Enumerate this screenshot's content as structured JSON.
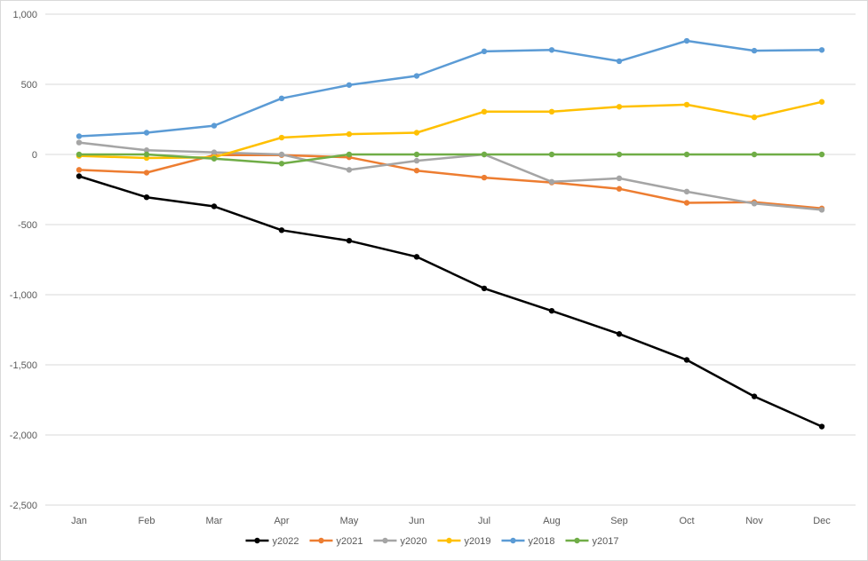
{
  "chart_data": {
    "type": "line",
    "title": "",
    "xlabel": "",
    "ylabel": "",
    "categories": [
      "Jan",
      "Feb",
      "Mar",
      "Apr",
      "May",
      "Jun",
      "Jul",
      "Aug",
      "Sep",
      "Oct",
      "Nov",
      "Dec"
    ],
    "ylim": [
      -2500,
      1000
    ],
    "yticks": [
      1000,
      500,
      0,
      -500,
      -1000,
      -1500,
      -2000,
      -2500
    ],
    "ytick_labels": [
      "1,000",
      "500",
      "0",
      "-500",
      "-1,000",
      "-1,500",
      "-2,000",
      "-2,500"
    ],
    "grid": true,
    "legend_position": "bottom",
    "series": [
      {
        "name": "y2022",
        "color": "#000000",
        "values": [
          -155,
          -305,
          -370,
          -540,
          -615,
          -730,
          -955,
          -1115,
          -1280,
          -1465,
          -1725,
          -1940
        ]
      },
      {
        "name": "y2021",
        "color": "#ed7d31",
        "values": [
          -110,
          -130,
          -5,
          -5,
          -20,
          -115,
          -165,
          -200,
          -245,
          -345,
          -340,
          -385
        ]
      },
      {
        "name": "y2020",
        "color": "#a5a5a5",
        "values": [
          85,
          30,
          15,
          0,
          -110,
          -45,
          0,
          -195,
          -170,
          -265,
          -350,
          -395
        ]
      },
      {
        "name": "y2019",
        "color": "#ffc000",
        "values": [
          -10,
          -25,
          -20,
          120,
          145,
          155,
          305,
          305,
          340,
          355,
          265,
          375
        ]
      },
      {
        "name": "y2018",
        "color": "#5b9bd5",
        "values": [
          130,
          155,
          205,
          400,
          495,
          560,
          735,
          745,
          665,
          810,
          740,
          745
        ]
      },
      {
        "name": "y2017",
        "color": "#70ad47",
        "values": [
          0,
          0,
          -30,
          -65,
          0,
          0,
          0,
          0,
          0,
          0,
          0,
          0
        ]
      }
    ]
  }
}
